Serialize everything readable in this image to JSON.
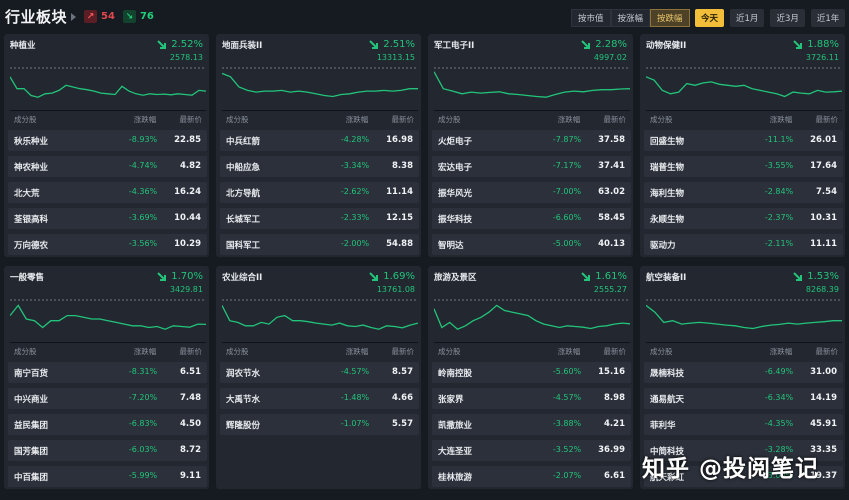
{
  "header": {
    "title": "行业板块",
    "up_count": "54",
    "down_count": "76",
    "sort_buttons": [
      {
        "label": "按市值",
        "active": false
      },
      {
        "label": "按涨幅",
        "active": false
      },
      {
        "label": "按跌幅",
        "active": true
      }
    ],
    "range_buttons": [
      {
        "label": "今天",
        "active": true
      },
      {
        "label": "近1月",
        "active": false
      },
      {
        "label": "近3月",
        "active": false
      },
      {
        "label": "近1年",
        "active": false
      }
    ]
  },
  "columns": {
    "stock": "成分股",
    "change": "涨跌幅",
    "price": "最新价"
  },
  "colors": {
    "down": "#22c47a",
    "up": "#e0474d",
    "accent": "#f2be3a"
  },
  "cards": [
    {
      "name": "种植业",
      "pct": "2.52%",
      "value": "2578.13",
      "rows": [
        [
          "秋乐种业",
          "-8.93%",
          "22.85"
        ],
        [
          "神农种业",
          "-4.74%",
          "4.82"
        ],
        [
          "北大荒",
          "-4.36%",
          "16.24"
        ],
        [
          "荃银高科",
          "-3.69%",
          "10.44"
        ],
        [
          "万向德农",
          "-3.56%",
          "10.29"
        ]
      ]
    },
    {
      "name": "地面兵装II",
      "pct": "2.51%",
      "value": "13313.15",
      "rows": [
        [
          "中兵红箭",
          "-4.28%",
          "16.98"
        ],
        [
          "中船应急",
          "-3.34%",
          "8.38"
        ],
        [
          "北方导航",
          "-2.62%",
          "11.14"
        ],
        [
          "长城军工",
          "-2.33%",
          "12.15"
        ],
        [
          "国科军工",
          "-2.00%",
          "54.88"
        ]
      ]
    },
    {
      "name": "军工电子II",
      "pct": "2.28%",
      "value": "4997.02",
      "rows": [
        [
          "火炬电子",
          "-7.87%",
          "37.58"
        ],
        [
          "宏达电子",
          "-7.17%",
          "37.41"
        ],
        [
          "振华风光",
          "-7.00%",
          "63.02"
        ],
        [
          "振华科技",
          "-6.60%",
          "58.45"
        ],
        [
          "智明达",
          "-5.00%",
          "40.13"
        ]
      ]
    },
    {
      "name": "动物保健II",
      "pct": "1.88%",
      "value": "3726.11",
      "rows": [
        [
          "回盛生物",
          "-11.1%",
          "26.01"
        ],
        [
          "瑞普生物",
          "-3.55%",
          "17.64"
        ],
        [
          "海利生物",
          "-2.84%",
          "7.54"
        ],
        [
          "永顺生物",
          "-2.37%",
          "10.31"
        ],
        [
          "驱动力",
          "-2.11%",
          "11.11"
        ]
      ]
    },
    {
      "name": "一般零售",
      "pct": "1.70%",
      "value": "3429.81",
      "rows": [
        [
          "南宁百货",
          "-8.31%",
          "6.51"
        ],
        [
          "中兴商业",
          "-7.20%",
          "7.48"
        ],
        [
          "益民集团",
          "-6.83%",
          "4.50"
        ],
        [
          "国芳集团",
          "-6.03%",
          "8.72"
        ],
        [
          "中百集团",
          "-5.99%",
          "9.11"
        ]
      ]
    },
    {
      "name": "农业综合II",
      "pct": "1.69%",
      "value": "13761.08",
      "rows": [
        [
          "润农节水",
          "-4.57%",
          "8.57"
        ],
        [
          "大禹节水",
          "-1.48%",
          "4.66"
        ],
        [
          "辉隆股份",
          "-1.07%",
          "5.57"
        ]
      ]
    },
    {
      "name": "旅游及景区",
      "pct": "1.61%",
      "value": "2555.27",
      "rows": [
        [
          "岭南控股",
          "-5.60%",
          "15.16"
        ],
        [
          "张家界",
          "-4.57%",
          "8.98"
        ],
        [
          "凯撒旅业",
          "-3.88%",
          "4.21"
        ],
        [
          "大连圣亚",
          "-3.52%",
          "36.99"
        ],
        [
          "桂林旅游",
          "-2.07%",
          "6.61"
        ]
      ]
    },
    {
      "name": "航空装备II",
      "pct": "1.53%",
      "value": "8268.39",
      "rows": [
        [
          "晟楠科技",
          "-6.49%",
          "31.00"
        ],
        [
          "通易航天",
          "-6.34%",
          "14.19"
        ],
        [
          "菲利华",
          "-4.35%",
          "45.91"
        ],
        [
          "中简科技",
          "-3.28%",
          "33.35"
        ],
        [
          "航天彩虹",
          "-3.00%",
          "19.37"
        ]
      ]
    }
  ],
  "chart_data": {
    "type": "line",
    "title": "行业板块 intraday sparklines (normalized 0=top,100=bottom)",
    "series": [
      {
        "name": "种植业",
        "values": [
          20,
          55,
          55,
          75,
          80,
          70,
          68,
          60,
          45,
          50,
          55,
          58,
          62,
          68,
          70,
          72,
          48,
          62,
          70,
          74,
          70,
          72,
          71,
          73,
          70,
          72,
          74,
          60,
          62
        ]
      },
      {
        "name": "地面兵装II",
        "values": [
          10,
          20,
          50,
          60,
          65,
          62,
          62,
          60,
          65,
          62,
          65,
          70,
          75,
          78,
          72,
          70,
          65,
          62,
          62,
          60,
          62,
          60,
          55,
          55
        ]
      },
      {
        "name": "军工电子II",
        "values": [
          5,
          55,
          62,
          70,
          65,
          68,
          66,
          64,
          70,
          72,
          75,
          78,
          80,
          72,
          65,
          62,
          64,
          60,
          58,
          58,
          56,
          55
        ]
      },
      {
        "name": "动物保健II",
        "values": [
          20,
          30,
          60,
          70,
          65,
          40,
          45,
          38,
          35,
          42,
          45,
          48,
          45,
          55,
          60,
          65,
          70,
          78,
          65,
          68,
          70,
          60,
          65,
          64,
          62
        ]
      },
      {
        "name": "一般零售",
        "values": [
          40,
          10,
          50,
          55,
          75,
          55,
          55,
          40,
          40,
          45,
          50,
          50,
          55,
          60,
          65,
          70,
          70,
          75,
          72,
          80,
          70,
          72,
          74,
          65,
          66
        ]
      },
      {
        "name": "农业综合II",
        "values": [
          10,
          55,
          60,
          70,
          70,
          60,
          65,
          45,
          40,
          55,
          55,
          58,
          62,
          65,
          68,
          62,
          70,
          72,
          68,
          75,
          80,
          70,
          72,
          76,
          68,
          62
        ]
      },
      {
        "name": "旅游及景区",
        "values": [
          20,
          75,
          60,
          80,
          70,
          55,
          45,
          30,
          10,
          25,
          30,
          35,
          40,
          55,
          65,
          70,
          75,
          70,
          72,
          74,
          78,
          72,
          70,
          65,
          62,
          64
        ]
      },
      {
        "name": "航空装备II",
        "values": [
          10,
          30,
          60,
          55,
          65,
          62,
          60,
          62,
          65,
          68,
          70,
          75,
          78,
          72,
          68,
          66,
          62,
          65,
          62,
          60,
          58,
          55,
          55
        ]
      }
    ]
  },
  "watermark": "知乎 @投阅笔记"
}
